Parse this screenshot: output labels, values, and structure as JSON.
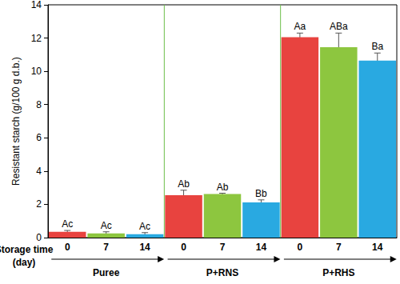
{
  "chart_data": {
    "type": "bar",
    "y_label": "Resistant starch (g/100 g d.b.)",
    "x_label": "Storage time\n(day)",
    "categories": [
      "0",
      "7",
      "14",
      "0",
      "7",
      "14",
      "0",
      "7",
      "14"
    ],
    "groups": [
      "Puree",
      "P+RNS",
      "P+RHS"
    ],
    "values": [
      0.35,
      0.25,
      0.2,
      2.55,
      2.62,
      2.12,
      12.05,
      11.45,
      10.65
    ],
    "errors": [
      0.08,
      0.1,
      0.1,
      0.3,
      0.05,
      0.15,
      0.25,
      0.85,
      0.45
    ],
    "annotations": [
      "Ac",
      "Ac",
      "Ac",
      "Ab",
      "Ab",
      "Bb",
      "Aa",
      "ABa",
      "Ba"
    ],
    "colors": [
      "#e8433f",
      "#8dc63f",
      "#29a9e1",
      "#e8433f",
      "#8dc63f",
      "#29a9e1",
      "#e8433f",
      "#8dc63f",
      "#29a9e1"
    ],
    "ylim": [
      0,
      14
    ],
    "yticks": [
      0,
      2,
      4,
      6,
      8,
      10,
      12,
      14
    ],
    "grid": false
  }
}
